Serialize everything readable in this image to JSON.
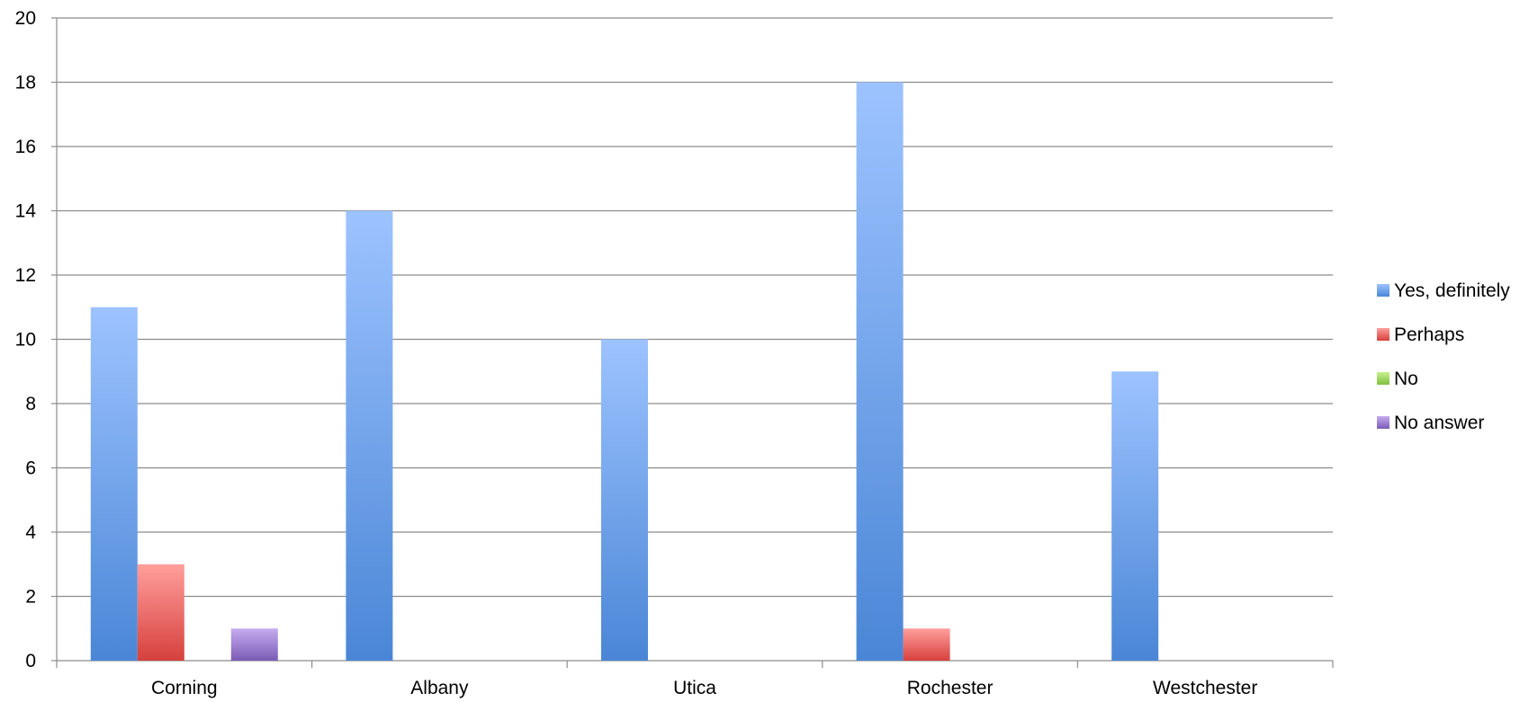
{
  "chart_data": {
    "type": "bar",
    "title": "",
    "xlabel": "",
    "ylabel": "",
    "ylim": [
      0,
      20
    ],
    "yticks": [
      0,
      2,
      4,
      6,
      8,
      10,
      12,
      14,
      16,
      18,
      20
    ],
    "grid": true,
    "legend_position": "right",
    "categories": [
      "Corning",
      "Albany",
      "Utica",
      "Rochester",
      "Westchester"
    ],
    "series": [
      {
        "name": "Yes, definitely",
        "values": [
          11,
          14,
          10,
          18,
          9
        ],
        "color": "#4a86d6",
        "color_light": "#9dc3ff"
      },
      {
        "name": "Perhaps",
        "values": [
          3,
          0,
          0,
          1,
          0
        ],
        "color": "#d6403d",
        "color_light": "#ff9f9c"
      },
      {
        "name": "No",
        "values": [
          0,
          0,
          0,
          0,
          0
        ],
        "color": "#7fbf3f",
        "color_light": "#c8f08f"
      },
      {
        "name": "No answer",
        "values": [
          1,
          0,
          0,
          0,
          0
        ],
        "color": "#7b5bb5",
        "color_light": "#c6acf0"
      }
    ]
  }
}
